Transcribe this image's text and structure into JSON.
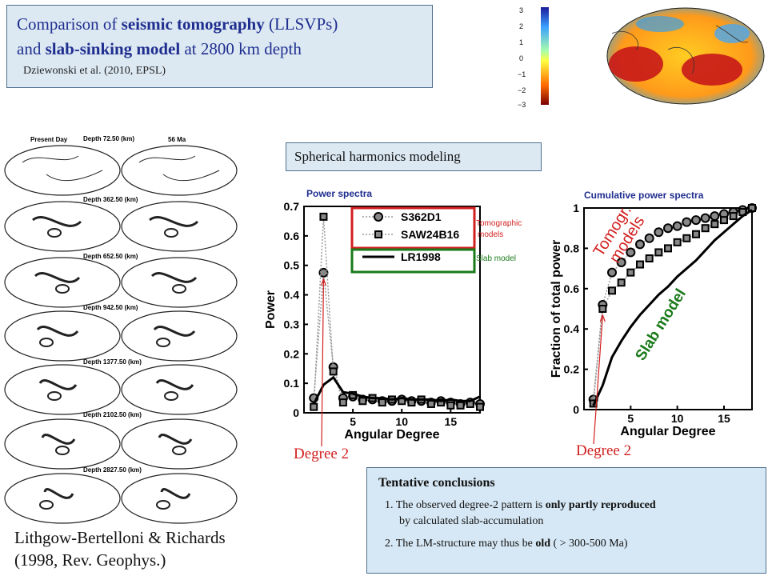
{
  "title": {
    "line1_pre": "Comparison of ",
    "line1_bold": "seismic tomography",
    "line1_post": " (LLSVPs)",
    "line2_pre": "and ",
    "line2_bold": "slab-sinking model",
    "line2_post": " at 2800 km depth",
    "citation": "Dziewonski et al. (2010, EPSL)"
  },
  "colorbar": {
    "ticks": [
      "3",
      "2",
      "1",
      "0",
      "−1",
      "−2",
      "−3"
    ]
  },
  "spherical_box": "Spherical harmonics modeling",
  "maps": {
    "headers": [
      "Present Day",
      "56 Ma"
    ],
    "depths": [
      "Depth 72.50 (km)",
      "Depth 362.50 (km)",
      "Depth 652.50 (km)",
      "Depth 942.50 (km)",
      "Depth 1377.50 (km)",
      "Depth 2102.50 (km)",
      "Depth 2827.50 (km)"
    ]
  },
  "caption": {
    "line1": "Lithgow-Bertelloni & Richards",
    "line2": "(1998, Rev. Geophys.)"
  },
  "annotations": {
    "tomographic_models": "Tomographic models",
    "slab_model_small": "Slab model",
    "degree2_left": "Degree 2",
    "degree2_right": "Degree 2",
    "tomogr_models_big": "Tomogr. models",
    "slab_model_big": "Slab model"
  },
  "conclusions": {
    "heading": "Tentative conclusions",
    "item1_pre": "1. The observed degree-2 pattern is ",
    "item1_bold": "only partly reproduced",
    "item1_cont": "by calculated slab-accumulation",
    "item2_pre": "2. The LM-structure may thus be ",
    "item2_bold": "old",
    "item2_post": " ( > 300-500 Ma)"
  },
  "chart_data": [
    {
      "type": "line",
      "title": "Power spectra",
      "xlabel": "Angular Degree",
      "ylabel": "Power",
      "xlim": [
        0,
        18
      ],
      "ylim": [
        0,
        0.7
      ],
      "xticks": [
        5,
        10,
        15
      ],
      "yticks": [
        0,
        0.1,
        0.2,
        0.3,
        0.4,
        0.5,
        0.6,
        0.7
      ],
      "x": [
        1,
        2,
        3,
        4,
        5,
        6,
        7,
        8,
        9,
        10,
        11,
        12,
        13,
        14,
        15,
        16,
        17,
        18
      ],
      "series": [
        {
          "name": "S362D1",
          "color": "#444444",
          "values": [
            0.05,
            0.475,
            0.155,
            0.05,
            0.055,
            0.045,
            0.045,
            0.04,
            0.04,
            0.045,
            0.04,
            0.04,
            0.035,
            0.04,
            0.035,
            0.03,
            0.035,
            0.03
          ]
        },
        {
          "name": "SAW24B16",
          "color": "#444444",
          "values": [
            0.02,
            0.665,
            0.14,
            0.035,
            0.06,
            0.04,
            0.05,
            0.035,
            0.045,
            0.04,
            0.035,
            0.045,
            0.03,
            0.035,
            0.025,
            0.025,
            0.03,
            0.02
          ]
        },
        {
          "name": "LR1998",
          "color": "#000000",
          "values": [
            0.03,
            0.095,
            0.12,
            0.07,
            0.065,
            0.055,
            0.05,
            0.05,
            0.045,
            0.05,
            0.045,
            0.045,
            0.045,
            0.04,
            0.045,
            0.04,
            0.04,
            0.055
          ]
        }
      ]
    },
    {
      "type": "line",
      "title": "Cumulative power spectra",
      "xlabel": "Angular Degree",
      "ylabel": "Fraction of total power",
      "xlim": [
        0,
        18
      ],
      "ylim": [
        0,
        1
      ],
      "xticks": [
        5,
        10,
        15
      ],
      "yticks": [
        0,
        0.2,
        0.4,
        0.6,
        0.8,
        1
      ],
      "x": [
        1,
        2,
        3,
        4,
        5,
        6,
        7,
        8,
        9,
        10,
        11,
        12,
        13,
        14,
        15,
        16,
        17,
        18
      ],
      "series": [
        {
          "name": "S362D1",
          "color": "#444444",
          "values": [
            0.05,
            0.52,
            0.68,
            0.73,
            0.78,
            0.82,
            0.85,
            0.88,
            0.9,
            0.91,
            0.93,
            0.94,
            0.95,
            0.96,
            0.97,
            0.98,
            0.99,
            1.0
          ]
        },
        {
          "name": "SAW24B16",
          "color": "#444444",
          "values": [
            0.03,
            0.5,
            0.59,
            0.63,
            0.68,
            0.72,
            0.75,
            0.78,
            0.8,
            0.83,
            0.85,
            0.87,
            0.9,
            0.92,
            0.94,
            0.96,
            0.98,
            1.0
          ]
        },
        {
          "name": "LR1998",
          "color": "#000000",
          "values": [
            0.02,
            0.12,
            0.26,
            0.34,
            0.41,
            0.47,
            0.52,
            0.57,
            0.61,
            0.66,
            0.7,
            0.74,
            0.79,
            0.84,
            0.88,
            0.92,
            0.96,
            0.99
          ]
        }
      ]
    }
  ]
}
